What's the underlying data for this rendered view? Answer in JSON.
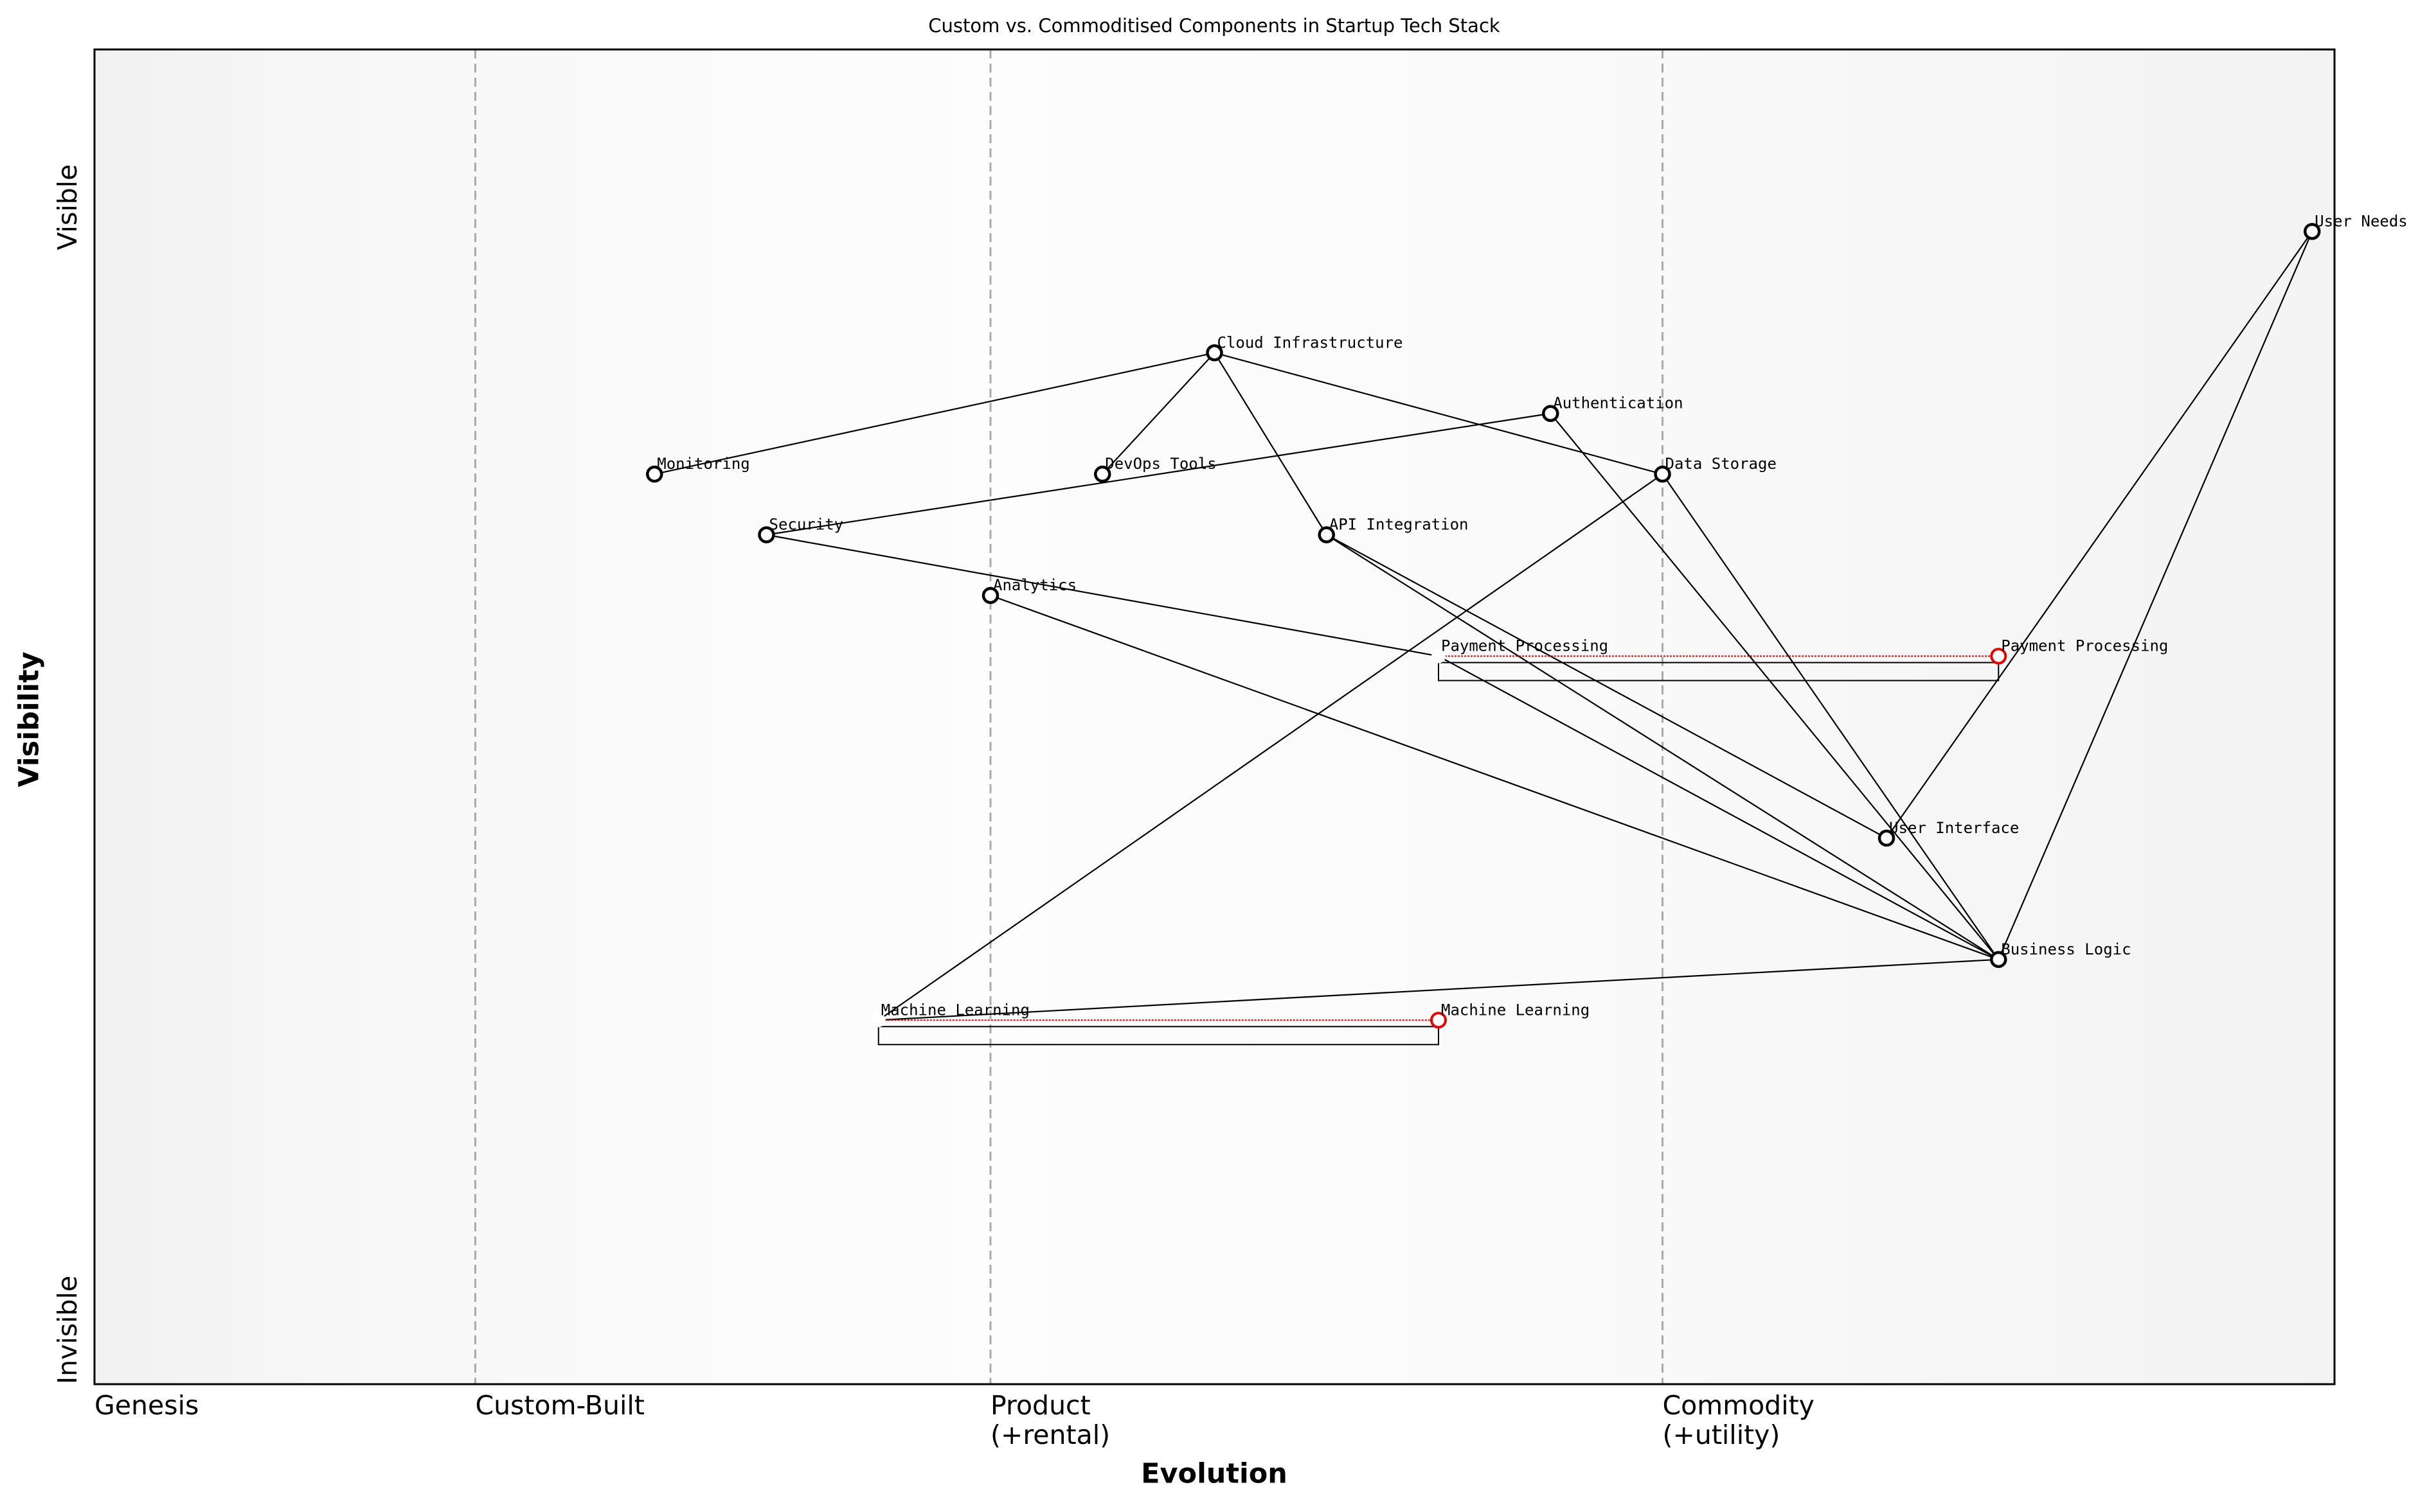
{
  "chart_data": {
    "type": "wardley",
    "title": "Custom vs. Commoditised Components in Startup Tech Stack",
    "xlabel": "Evolution",
    "ylabel": "Visibility",
    "xlim": [
      0,
      1
    ],
    "ylim": [
      0,
      1.1
    ],
    "xticks": [
      {
        "value": 0,
        "label": "Genesis"
      },
      {
        "value": 0.17,
        "label": "Custom-Built"
      },
      {
        "value": 0.4,
        "label": "Product\n(+rental)"
      },
      {
        "value": 0.7,
        "label": "Commodity\n(+utility)"
      }
    ],
    "yticks": [
      {
        "value": 0,
        "label": "Invisible"
      },
      {
        "value": 0.97,
        "label": "Visible"
      }
    ],
    "grid": true,
    "components": [
      {
        "name": "User Needs",
        "x": 0.99,
        "y": 0.95
      },
      {
        "name": "Cloud Infrastructure",
        "x": 0.5,
        "y": 0.85
      },
      {
        "name": "Authentication",
        "x": 0.65,
        "y": 0.8
      },
      {
        "name": "Monitoring",
        "x": 0.25,
        "y": 0.75
      },
      {
        "name": "DevOps Tools",
        "x": 0.45,
        "y": 0.75
      },
      {
        "name": "Data Storage",
        "x": 0.7,
        "y": 0.75
      },
      {
        "name": "Security",
        "x": 0.3,
        "y": 0.7
      },
      {
        "name": "API Integration",
        "x": 0.55,
        "y": 0.7
      },
      {
        "name": "Analytics",
        "x": 0.4,
        "y": 0.65
      },
      {
        "name": "Payment Processing",
        "x": 0.6,
        "y": 0.6
      },
      {
        "name": "User Interface",
        "x": 0.8,
        "y": 0.45
      },
      {
        "name": "Business Logic",
        "x": 0.85,
        "y": 0.35
      },
      {
        "name": "Machine Learning",
        "x": 0.35,
        "y": 0.3
      }
    ],
    "evolutions": [
      {
        "component": "Payment Processing",
        "to": 0.85
      },
      {
        "component": "Machine Learning",
        "to": 0.6
      }
    ],
    "links": [
      [
        "Monitoring",
        "Cloud Infrastructure"
      ],
      [
        "Cloud Infrastructure",
        "DevOps Tools"
      ],
      [
        "Cloud Infrastructure",
        "API Integration"
      ],
      [
        "Cloud Infrastructure",
        "Data Storage"
      ],
      [
        "Security",
        "Authentication"
      ],
      [
        "Security",
        "Payment Processing"
      ],
      [
        "Analytics",
        "Business Logic"
      ],
      [
        "API Integration",
        "User Interface"
      ],
      [
        "API Integration",
        "Business Logic"
      ],
      [
        "Authentication",
        "Business Logic"
      ],
      [
        "Data Storage",
        "Business Logic"
      ],
      [
        "Data Storage",
        "Machine Learning"
      ],
      [
        "Payment Processing",
        "Business Logic"
      ],
      [
        "User Interface",
        "User Needs"
      ],
      [
        "Business Logic",
        "User Needs"
      ],
      [
        "Business Logic",
        "Machine Learning"
      ]
    ]
  }
}
